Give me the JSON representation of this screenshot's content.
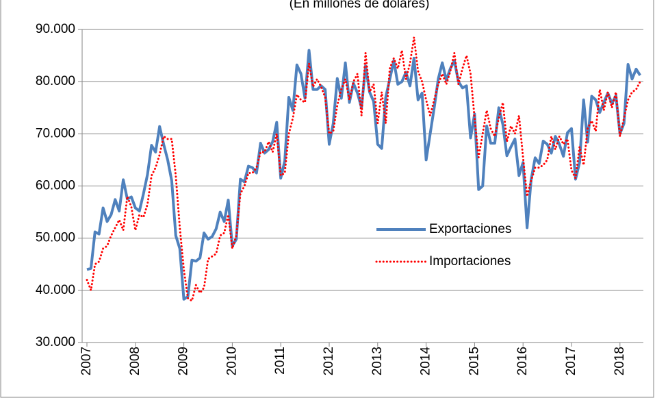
{
  "chart_data": {
    "type": "line",
    "title": "(En millones de dólares)",
    "categories": [
      "2007",
      null,
      null,
      null,
      null,
      null,
      null,
      null,
      null,
      null,
      null,
      null,
      "2008",
      null,
      null,
      null,
      null,
      null,
      null,
      null,
      null,
      null,
      null,
      null,
      "2009",
      null,
      null,
      null,
      null,
      null,
      null,
      null,
      null,
      null,
      null,
      null,
      "2010",
      null,
      null,
      null,
      null,
      null,
      null,
      null,
      null,
      null,
      null,
      null,
      "2011",
      null,
      null,
      null,
      null,
      null,
      null,
      null,
      null,
      null,
      null,
      null,
      "2012",
      null,
      null,
      null,
      null,
      null,
      null,
      null,
      null,
      null,
      null,
      null,
      "2013",
      null,
      null,
      null,
      null,
      null,
      null,
      null,
      null,
      null,
      null,
      null,
      "2014",
      null,
      null,
      null,
      null,
      null,
      null,
      null,
      null,
      null,
      null,
      null,
      "2015",
      null,
      null,
      null,
      null,
      null,
      null,
      null,
      null,
      null,
      null,
      null,
      "2016",
      null,
      null,
      null,
      null,
      null,
      null,
      null,
      null,
      null,
      null,
      null,
      "2017",
      null,
      null,
      null,
      null,
      null,
      null,
      null,
      null,
      null,
      null,
      null,
      "2018",
      null,
      null,
      null,
      null,
      null
    ],
    "series": [
      {
        "name": "Exportaciones",
        "color": "#4f81bd",
        "style": "solid",
        "values": [
          44000,
          44200,
          51200,
          50800,
          55800,
          53200,
          54500,
          57400,
          55200,
          61200,
          57500,
          57900,
          55800,
          55200,
          58500,
          62200,
          67800,
          66500,
          71400,
          68000,
          65000,
          61000,
          50500,
          48000,
          38300,
          38800,
          45800,
          45600,
          46200,
          51000,
          49800,
          50300,
          51800,
          55000,
          53200,
          57300,
          48500,
          49800,
          61300,
          60800,
          63800,
          63500,
          62500,
          68200,
          66300,
          67000,
          68500,
          72200,
          61500,
          64800,
          77000,
          74500,
          83200,
          81500,
          76800,
          86000,
          78500,
          78500,
          79200,
          78500,
          68000,
          72000,
          80600,
          76800,
          83600,
          76000,
          79700,
          77800,
          75000,
          83000,
          78000,
          76200,
          68000,
          67200,
          77000,
          80500,
          84000,
          79500,
          80000,
          81800,
          79200,
          84500,
          76500,
          77800,
          65000,
          70000,
          75000,
          80500,
          83600,
          80300,
          82500,
          84000,
          80000,
          78800,
          79200,
          69200,
          73800,
          59300,
          60000,
          71500,
          68200,
          68200,
          75000,
          71800,
          65800,
          67500,
          69000,
          62000,
          64500,
          52000,
          61200,
          65400,
          64300,
          68600,
          68000,
          66300,
          69500,
          68000,
          65700,
          70200,
          71000,
          61300,
          64500,
          76500,
          68400,
          77200,
          76500,
          74100,
          76000,
          77800,
          75800,
          77300,
          70000,
          72000,
          83300,
          80500,
          82400,
          81200
        ]
      },
      {
        "name": "Importaciones",
        "color": "#ff0000",
        "style": "dotted",
        "values": [
          42000,
          40000,
          45000,
          45500,
          48000,
          48500,
          50500,
          52000,
          53500,
          51500,
          58000,
          56000,
          51500,
          54500,
          54000,
          56500,
          62000,
          63500,
          66000,
          69500,
          69000,
          69000,
          62000,
          52000,
          44000,
          38500,
          38000,
          41000,
          39500,
          40500,
          46000,
          46500,
          47000,
          50500,
          51000,
          54500,
          48000,
          50500,
          58500,
          60000,
          62500,
          62500,
          63500,
          66500,
          66500,
          68500,
          66500,
          70000,
          62000,
          62500,
          70000,
          73000,
          77500,
          76500,
          76000,
          83500,
          79000,
          80500,
          79000,
          77000,
          70000,
          70500,
          75500,
          78500,
          80500,
          76500,
          80000,
          81500,
          73500,
          85500,
          78000,
          79500,
          72000,
          78000,
          72000,
          82500,
          84500,
          82500,
          86000,
          80500,
          83500,
          88500,
          82000,
          80000,
          76500,
          73500,
          76500,
          79500,
          81500,
          79500,
          82000,
          85500,
          79500,
          82500,
          85000,
          81500,
          73000,
          65500,
          70000,
          74500,
          71000,
          69500,
          73000,
          76000,
          68500,
          71500,
          70000,
          73500,
          65500,
          58000,
          61000,
          63500,
          63500,
          64000,
          65000,
          69500,
          67000,
          69500,
          68000,
          69000,
          63000,
          61500,
          67500,
          64000,
          71000,
          72500,
          70500,
          78500,
          74500,
          78000,
          75000,
          78000,
          69500,
          73000,
          76500,
          78000,
          78500,
          80000
        ]
      }
    ],
    "ylim": [
      30000,
      90000
    ],
    "yticks": [
      {
        "value": 30000,
        "label": "30.000"
      },
      {
        "value": 40000,
        "label": "40.000"
      },
      {
        "value": 50000,
        "label": "50.000"
      },
      {
        "value": 60000,
        "label": "60.000"
      },
      {
        "value": 70000,
        "label": "70.000"
      },
      {
        "value": 80000,
        "label": "80.000"
      },
      {
        "value": 90000,
        "label": "90.000"
      }
    ],
    "grid": true
  }
}
